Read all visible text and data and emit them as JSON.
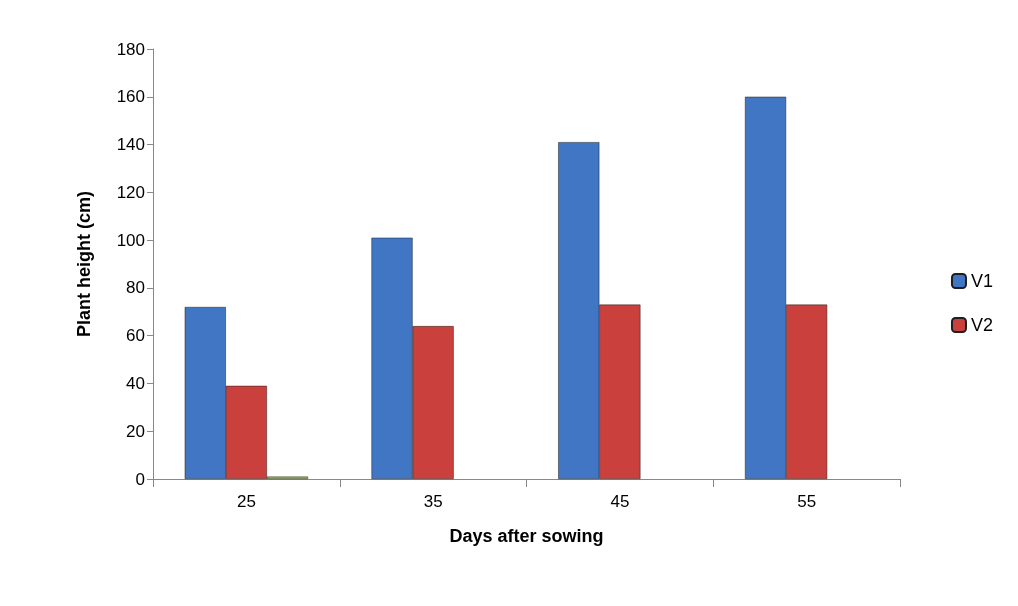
{
  "chart_data": {
    "type": "bar",
    "xlabel": "Days after sowing",
    "ylabel": "Plant height (cm)",
    "categories": [
      "25",
      "35",
      "45",
      "55"
    ],
    "series": [
      {
        "name": "V1",
        "color": "#4076c4",
        "values": [
          72,
          101,
          141,
          160
        ]
      },
      {
        "name": "V2",
        "color": "#c9403c",
        "values": [
          39,
          64,
          73,
          73
        ]
      },
      {
        "color": "#9bbb59",
        "values": [
          1,
          null,
          null,
          null
        ]
      }
    ],
    "ylim": [
      0,
      180
    ],
    "yticks": [
      0,
      20,
      40,
      60,
      80,
      100,
      120,
      140,
      160,
      180
    ],
    "grid": false,
    "legend": "right"
  }
}
